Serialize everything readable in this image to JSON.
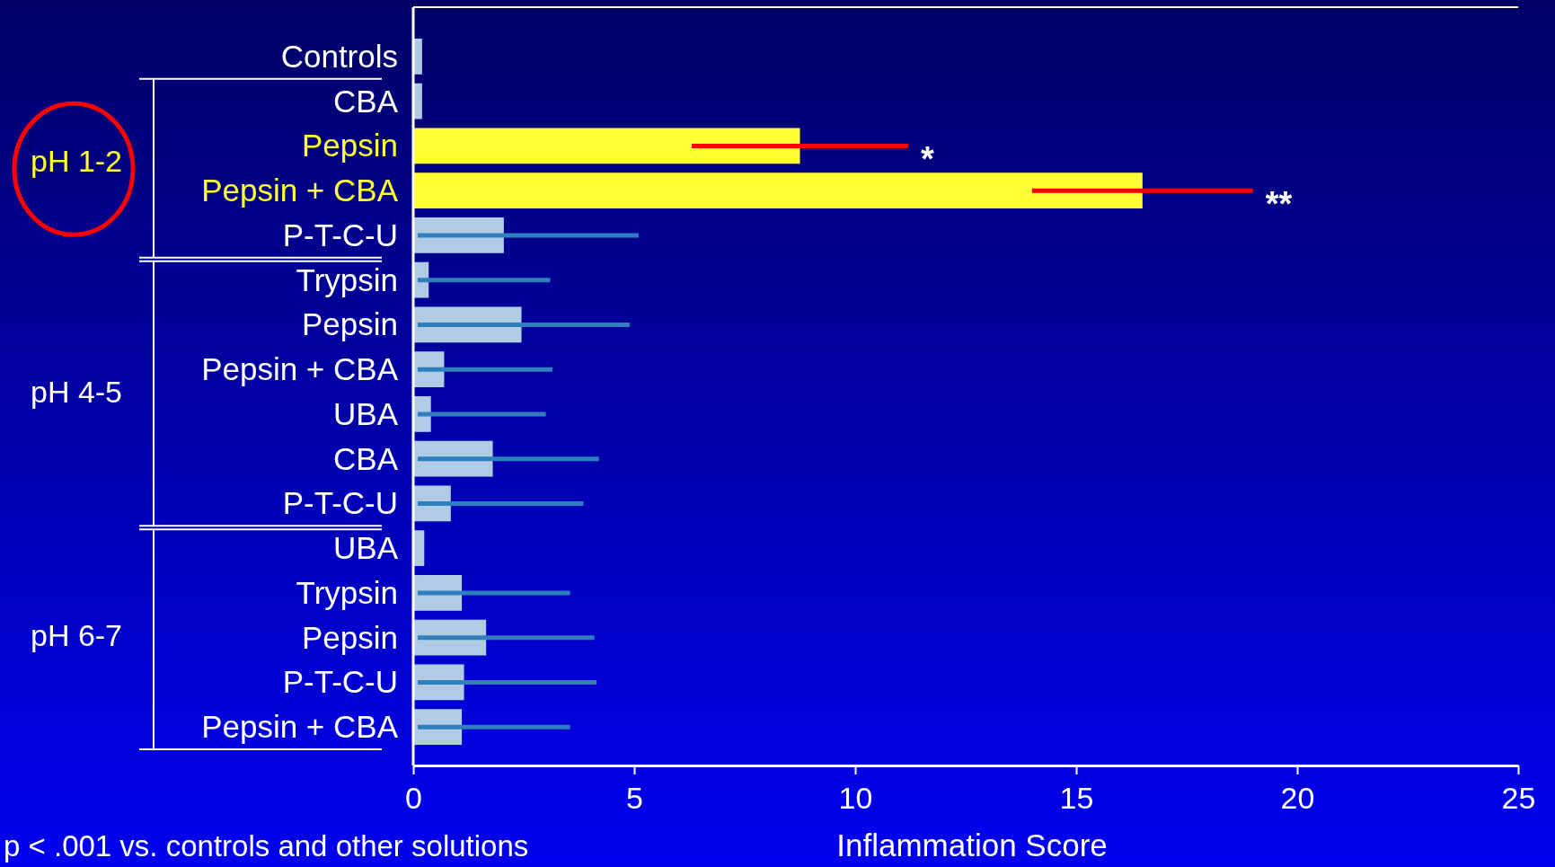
{
  "chart_data": {
    "type": "bar",
    "orientation": "horizontal",
    "xlabel": "Inflammation Score",
    "categories": [
      "Controls",
      "CBA",
      "Pepsin",
      "Pepsin + CBA",
      "P-T-C-U",
      "Trypsin",
      "Pepsin",
      "Pepsin + CBA",
      "UBA",
      "CBA",
      "P-T-C-U",
      "UBA",
      "Trypsin",
      "Pepsin",
      "P-T-C-U",
      "Pepsin + CBA"
    ],
    "values": [
      0.2,
      0.2,
      8.75,
      16.5,
      2.05,
      0.35,
      2.45,
      0.7,
      0.4,
      1.8,
      0.85,
      0.25,
      1.1,
      1.65,
      1.15,
      1.1
    ],
    "errors": [
      null,
      null,
      [
        6.3,
        11.2
      ],
      [
        14.0,
        19.0
      ],
      [
        0.1,
        5.1
      ],
      [
        0.1,
        3.1
      ],
      [
        0.1,
        4.9
      ],
      [
        0.1,
        3.15
      ],
      [
        0.1,
        3.0
      ],
      [
        0.1,
        4.2
      ],
      [
        0.1,
        3.85
      ],
      null,
      [
        0.1,
        3.55
      ],
      [
        0.1,
        4.1
      ],
      [
        0.1,
        4.15
      ],
      [
        0.1,
        3.55
      ]
    ],
    "colors": [
      "#b0cce4",
      "#b0cce4",
      "#ffff33",
      "#ffff33",
      "#b0cce4",
      "#b0cce4",
      "#b0cce4",
      "#b0cce4",
      "#b0cce4",
      "#b0cce4",
      "#b0cce4",
      "#b0cce4",
      "#b0cce4",
      "#b0cce4",
      "#b0cce4",
      "#b0cce4"
    ],
    "xlim": [
      0,
      25
    ],
    "xticks": [
      0,
      5,
      10,
      15,
      20,
      25
    ],
    "annotations": [
      "pH 1-2",
      "pH 4-5",
      "pH 6-7",
      "*",
      "**",
      "p < .001 vs. controls and other solutions"
    ]
  }
}
